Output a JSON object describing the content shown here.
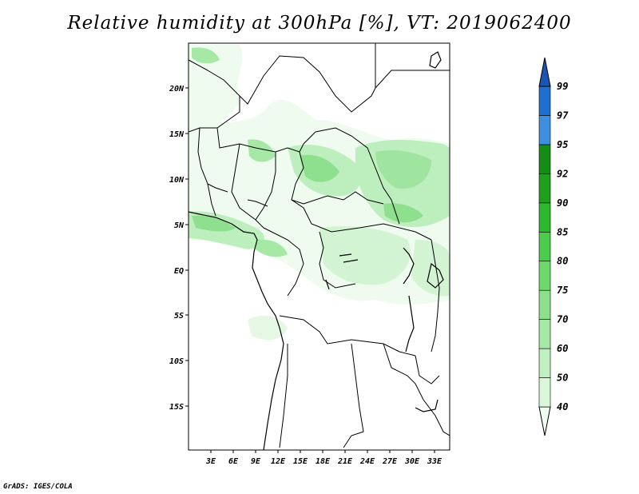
{
  "title": "Relative humidity at 300hPa [%], VT: 2019062400",
  "credit": "GrADS: IGES/COLA",
  "map": {
    "lon_range": [
      0,
      35
    ],
    "lat_range": [
      -20,
      25
    ],
    "lon_ticks": [
      "3E",
      "6E",
      "9E",
      "12E",
      "15E",
      "18E",
      "21E",
      "24E",
      "27E",
      "30E",
      "33E"
    ],
    "lat_ticks": [
      "20N",
      "15N",
      "10N",
      "5N",
      "EQ",
      "5S",
      "10S",
      "15S"
    ]
  },
  "colorbar": {
    "levels": [
      "40",
      "50",
      "60",
      "70",
      "75",
      "80",
      "85",
      "90",
      "92",
      "95",
      "97",
      "99"
    ],
    "colors": [
      "#f0fff0",
      "#d9f7d9",
      "#c1f0c1",
      "#a6e8a6",
      "#8de08d",
      "#6dd96d",
      "#4ccc4c",
      "#2eb82e",
      "#1ea01e",
      "#158c15",
      "#3f8fe0",
      "#1f6fd0",
      "#1a55b0"
    ]
  }
}
